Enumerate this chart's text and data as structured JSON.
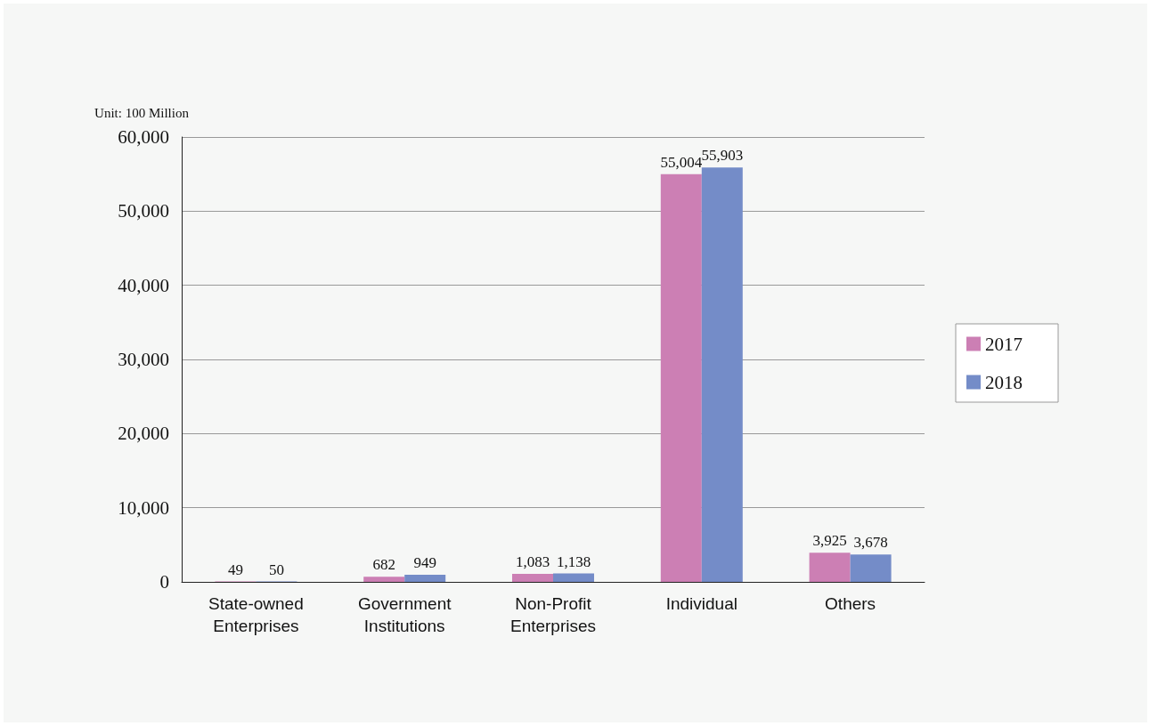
{
  "chart_data": {
    "type": "bar",
    "ylabel": "Unit: 100 Million",
    "categories": [
      "State-owned\nEnterprises",
      "Government\nInstitutions",
      "Non-Profit\nEnterprises",
      "Individual",
      "Others"
    ],
    "series": [
      {
        "name": "2017",
        "color": "#cc7fb4",
        "values": [
          49,
          682,
          1083,
          55004,
          3925
        ],
        "value_labels": [
          "49",
          "682",
          "1,083",
          "55,004",
          "3,925"
        ]
      },
      {
        "name": "2018",
        "color": "#748cc8",
        "values": [
          50,
          949,
          1138,
          55903,
          3678
        ],
        "value_labels": [
          "50",
          "949",
          "1,138",
          "55,903",
          "3,678"
        ]
      }
    ],
    "ylim": [
      0,
      60000
    ],
    "yticks": [
      0,
      {
        "value": 10000,
        "label": "10,000"
      },
      {
        "value": 20000,
        "label": "20,000"
      },
      {
        "value": 30000,
        "label": "30,000"
      },
      {
        "value": 40000,
        "label": "40,000"
      },
      {
        "value": 50000,
        "label": "50,000"
      },
      {
        "value": 60000,
        "label": "60,000"
      }
    ],
    "grid": "y",
    "legend": "right"
  }
}
